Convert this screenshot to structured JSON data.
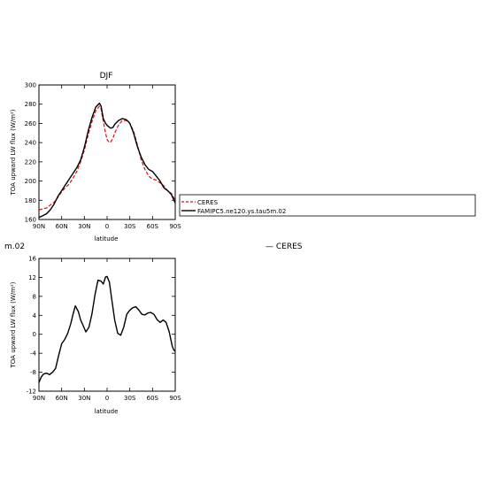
{
  "chart_data": [
    {
      "type": "line",
      "title": "DJF",
      "xlabel": "latitude",
      "ylabel": "TOA upward LW flux (W/m²)",
      "xlim": [
        90,
        -90
      ],
      "ylim": [
        160,
        300
      ],
      "x_ticks": [
        90,
        60,
        30,
        0,
        -30,
        -60,
        -90
      ],
      "x_tick_labels": [
        "90N",
        "60N",
        "30N",
        "0",
        "30S",
        "60S",
        "90S"
      ],
      "y_ticks": [
        160,
        180,
        200,
        220,
        240,
        260,
        280,
        300
      ],
      "y_tick_labels": [
        "160",
        "180",
        "200",
        "220",
        "240",
        "260",
        "280",
        "300"
      ],
      "grid": false,
      "legend_placement": "right",
      "x": [
        90,
        85,
        80,
        75,
        70,
        65,
        60,
        55,
        50,
        45,
        40,
        35,
        30,
        25,
        20,
        15,
        10,
        8,
        5,
        2,
        0,
        -3,
        -5,
        -8,
        -10,
        -15,
        -20,
        -25,
        -28,
        -30,
        -35,
        -40,
        -45,
        -50,
        -55,
        -60,
        -65,
        -70,
        -75,
        -80,
        -85,
        -90
      ],
      "series": [
        {
          "name": "CERES",
          "style": "dashed",
          "color": "#dd1111",
          "values": [
            170,
            171,
            172,
            175,
            178,
            183,
            189,
            193,
            197,
            203,
            210,
            220,
            232,
            248,
            262,
            273,
            278,
            275,
            262,
            250,
            243,
            240,
            241,
            245,
            250,
            258,
            263,
            263,
            262,
            260,
            252,
            238,
            222,
            212,
            205,
            202,
            201,
            198,
            195,
            190,
            187,
            180
          ]
        },
        {
          "name": "FAMIPC5.ne120.ys.tau5m.02",
          "style": "solid",
          "color": "#000000",
          "values": [
            162,
            164,
            166,
            170,
            176,
            184,
            190,
            196,
            202,
            208,
            214,
            222,
            235,
            252,
            266,
            277,
            281,
            278,
            265,
            260,
            258,
            256,
            255,
            256,
            259,
            263,
            265,
            264,
            262,
            260,
            250,
            236,
            225,
            217,
            212,
            210,
            205,
            200,
            193,
            190,
            186,
            177
          ]
        }
      ]
    },
    {
      "type": "line",
      "title": "",
      "title_fragment": "m.02",
      "xlabel": "latitude",
      "ylabel": "TOA upward LW flux (W/m²)",
      "xlim": [
        90,
        -90
      ],
      "ylim": [
        -12,
        16
      ],
      "x_ticks": [
        90,
        60,
        30,
        0,
        -30,
        -60,
        -90
      ],
      "x_tick_labels": [
        "90N",
        "60N",
        "30N",
        "0",
        "30S",
        "60S",
        "90S"
      ],
      "y_ticks": [
        -12,
        -8,
        -4,
        0,
        4,
        8,
        12,
        16
      ],
      "y_tick_labels": [
        "-12",
        "-8",
        "-4",
        "0",
        "4",
        "8",
        "12",
        "16"
      ],
      "grid": false,
      "floating_legend_text": "— CERES",
      "x": [
        90,
        87,
        84,
        80,
        76,
        72,
        68,
        64,
        60,
        56,
        52,
        48,
        45,
        42,
        38,
        35,
        32,
        28,
        24,
        20,
        16,
        12,
        8,
        5,
        2,
        0,
        -3,
        -6,
        -10,
        -14,
        -18,
        -22,
        -26,
        -30,
        -34,
        -38,
        -42,
        -46,
        -50,
        -54,
        -58,
        -62,
        -66,
        -70,
        -74,
        -78,
        -82,
        -86,
        -88,
        -90
      ],
      "series": [
        {
          "name": "",
          "style": "solid",
          "color": "#000000",
          "values": [
            -10.2,
            -9,
            -8.4,
            -8.2,
            -8.5,
            -8,
            -7.2,
            -4.5,
            -2,
            -1.1,
            0.2,
            2.2,
            4.2,
            6,
            4.8,
            3,
            2,
            0.5,
            1.5,
            4.3,
            8.3,
            11.4,
            11.2,
            10.6,
            12.1,
            12.2,
            11,
            7.6,
            3,
            0.2,
            -0.2,
            1.5,
            4.2,
            5.1,
            5.6,
            5.8,
            5.1,
            4.2,
            4.1,
            4.5,
            4.6,
            4.2,
            3.1,
            2.5,
            3,
            2.5,
            0.5,
            -2.5,
            -3.3,
            -3.6
          ]
        }
      ]
    }
  ]
}
